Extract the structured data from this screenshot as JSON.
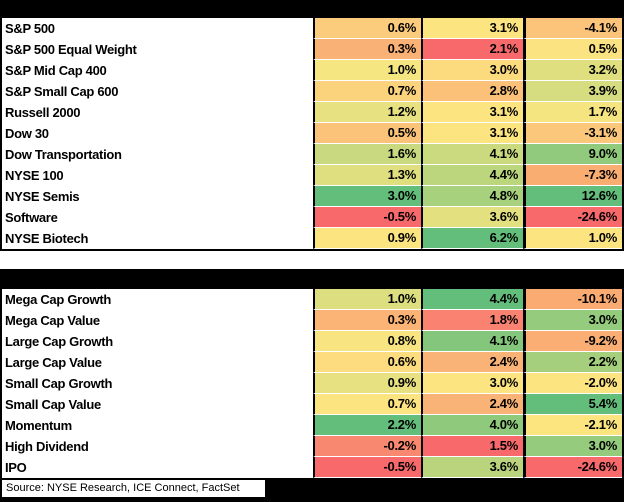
{
  "colors": {
    "header_bar": "#000000",
    "border": "#000000",
    "footer_bg": "#000000",
    "scale_low": "#F8696B",
    "scale_mid": "#FCE57F",
    "scale_high": "#63BE7B"
  },
  "footer": {
    "source": "Source: NYSE Research, ICE Connect, FactSet"
  },
  "chart_data": [
    {
      "type": "heatmap",
      "title": "",
      "columns": [
        "",
        "",
        ""
      ],
      "legend_position": "none",
      "rows": [
        {
          "label": "S&P 500",
          "values": [
            0.6,
            3.1,
            -4.1
          ],
          "display": [
            "0.6%",
            "3.1%",
            "-4.1%"
          ],
          "colors": [
            "#FBCC7C",
            "#FCE480",
            "#FBC47A"
          ]
        },
        {
          "label": "S&P 500 Equal Weight",
          "values": [
            0.3,
            2.1,
            0.5
          ],
          "display": [
            "0.3%",
            "2.1%",
            "0.5%"
          ],
          "colors": [
            "#FAB175",
            "#F8696B",
            "#FCE381"
          ]
        },
        {
          "label": "S&P Mid Cap 400",
          "values": [
            1.0,
            3.0,
            3.2
          ],
          "display": [
            "1.0%",
            "3.0%",
            "3.2%"
          ],
          "colors": [
            "#F6E681",
            "#FCDA7E",
            "#DFDF80"
          ]
        },
        {
          "label": "S&P Small Cap 600",
          "values": [
            0.7,
            2.8,
            3.9
          ],
          "display": [
            "0.7%",
            "2.8%",
            "3.9%"
          ],
          "colors": [
            "#FBD37D",
            "#FBC179",
            "#D6DC80"
          ]
        },
        {
          "label": "Russell 2000",
          "values": [
            1.2,
            3.1,
            1.7
          ],
          "display": [
            "1.2%",
            "3.1%",
            "1.7%"
          ],
          "colors": [
            "#E7E181",
            "#FCE480",
            "#F4E581"
          ]
        },
        {
          "label": "Dow 30",
          "values": [
            0.5,
            3.1,
            -3.1
          ],
          "display": [
            "0.5%",
            "3.1%",
            "-3.1%"
          ],
          "colors": [
            "#FBC379",
            "#FCE480",
            "#FBC87B"
          ]
        },
        {
          "label": "Dow Transportation",
          "values": [
            1.6,
            4.1,
            9.0
          ],
          "display": [
            "1.6%",
            "4.1%",
            "9.0%"
          ],
          "colors": [
            "#C9D97F",
            "#CBD97F",
            "#92CA7D"
          ]
        },
        {
          "label": "NYSE 100",
          "values": [
            1.3,
            4.4,
            -7.3
          ],
          "display": [
            "1.3%",
            "4.4%",
            "-7.3%"
          ],
          "colors": [
            "#DFDF80",
            "#BCD67E",
            "#FAAD70"
          ]
        },
        {
          "label": "NYSE Semis",
          "values": [
            3.0,
            4.8,
            12.6
          ],
          "display": [
            "3.0%",
            "4.8%",
            "12.6%"
          ],
          "colors": [
            "#63BE7B",
            "#A8D17E",
            "#63BE7B"
          ]
        },
        {
          "label": "Software",
          "values": [
            -0.5,
            3.6,
            -24.6
          ],
          "display": [
            "-0.5%",
            "3.6%",
            "-24.6%"
          ],
          "colors": [
            "#F8696B",
            "#E3E080",
            "#F8696B"
          ]
        },
        {
          "label": "NYSE Biotech",
          "values": [
            0.9,
            6.2,
            1.0
          ],
          "display": [
            "0.9%",
            "6.2%",
            "1.0%"
          ],
          "colors": [
            "#FCE480",
            "#63BE7B",
            "#FCE480"
          ]
        }
      ]
    },
    {
      "type": "heatmap",
      "title": "",
      "columns": [
        "",
        "",
        ""
      ],
      "legend_position": "none",
      "rows": [
        {
          "label": "Mega Cap Growth",
          "values": [
            1.0,
            4.4,
            -10.1
          ],
          "display": [
            "1.0%",
            "4.4%",
            "-10.1%"
          ],
          "colors": [
            "#DDDE7F",
            "#63BE7B",
            "#FAAB72"
          ]
        },
        {
          "label": "Mega Cap Value",
          "values": [
            0.3,
            1.8,
            3.0
          ],
          "display": [
            "0.3%",
            "1.8%",
            "3.0%"
          ],
          "colors": [
            "#FBB475",
            "#F98270",
            "#95CB7C"
          ]
        },
        {
          "label": "Large Cap Growth",
          "values": [
            0.8,
            4.1,
            -9.2
          ],
          "display": [
            "0.8%",
            "4.1%",
            "-9.2%"
          ],
          "colors": [
            "#F8E481",
            "#84C67C",
            "#FAAE73"
          ]
        },
        {
          "label": "Large Cap Value",
          "values": [
            0.6,
            2.4,
            2.2
          ],
          "display": [
            "0.6%",
            "2.4%",
            "2.2%"
          ],
          "colors": [
            "#FCDC7E",
            "#FAB377",
            "#A5CF7D"
          ]
        },
        {
          "label": "Small Cap Growth",
          "values": [
            0.9,
            3.0,
            -2.0
          ],
          "display": [
            "0.9%",
            "3.0%",
            "-2.0%"
          ],
          "colors": [
            "#E8E181",
            "#FCE480",
            "#FCE480"
          ]
        },
        {
          "label": "Small Cap Value",
          "values": [
            0.7,
            2.4,
            5.4
          ],
          "display": [
            "0.7%",
            "2.4%",
            "5.4%"
          ],
          "colors": [
            "#FCE480",
            "#FAB377",
            "#63BE7B"
          ]
        },
        {
          "label": "Momentum",
          "values": [
            2.2,
            4.0,
            -2.1
          ],
          "display": [
            "2.2%",
            "4.0%",
            "-2.1%"
          ],
          "colors": [
            "#63BE7B",
            "#8FC97C",
            "#FCE47F"
          ]
        },
        {
          "label": "High Dividend",
          "values": [
            -0.2,
            1.5,
            3.0
          ],
          "display": [
            "-0.2%",
            "1.5%",
            "3.0%"
          ],
          "colors": [
            "#F98870",
            "#F8696B",
            "#95CB7C"
          ]
        },
        {
          "label": "IPO",
          "values": [
            -0.5,
            3.6,
            -24.6
          ],
          "display": [
            "-0.5%",
            "3.6%",
            "-24.6%"
          ],
          "colors": [
            "#F8696B",
            "#BAD47D",
            "#F8696B"
          ]
        }
      ]
    }
  ]
}
